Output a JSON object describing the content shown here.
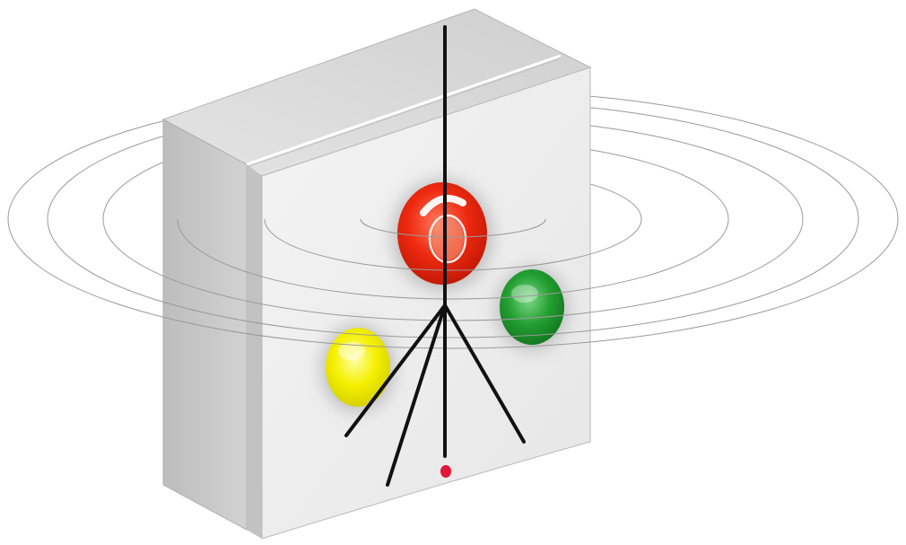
{
  "scene": {
    "background_color": "#ffffff",
    "device": {
      "face_color": "#f0f0f0",
      "side_color": "#c8c8c8",
      "top_color": "#d9d9d9"
    },
    "waves": {
      "ring_count": 6,
      "stroke_color": "#9a9a9a"
    },
    "lights": [
      {
        "name": "red-light",
        "color": "#e8230f"
      },
      {
        "name": "green-light",
        "color": "#1f8f2a"
      },
      {
        "name": "yellow-light",
        "color": "#f2ef00"
      }
    ],
    "indicator_dot_color": "#e0163a",
    "antenna_color": "#111111"
  }
}
